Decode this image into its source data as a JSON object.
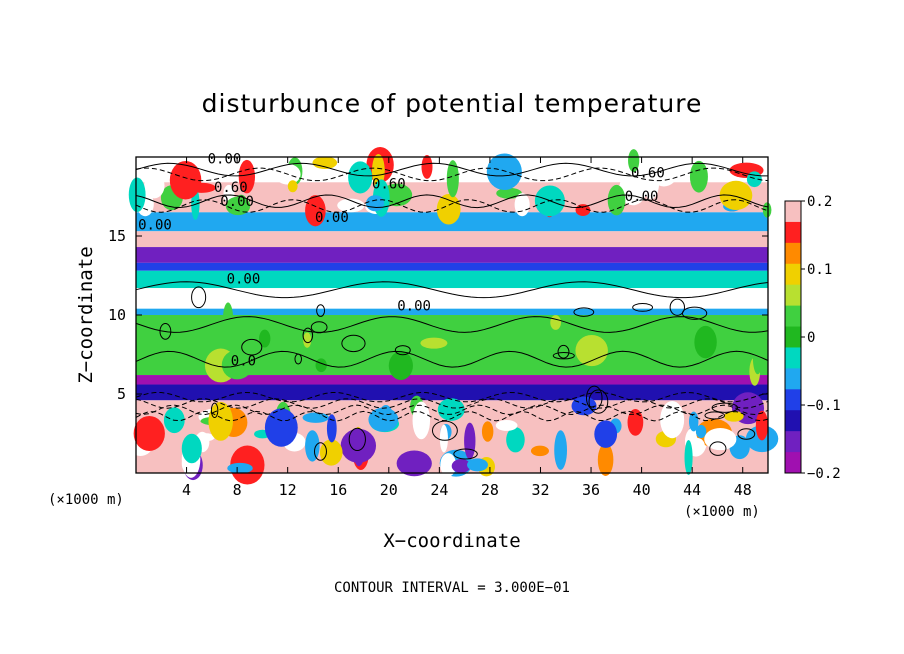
{
  "chart_data": {
    "type": "heatmap",
    "title": "disturbunce of potential temperature",
    "xlabel": "X−coordinate",
    "ylabel": "Z−coordinate",
    "x_unit_left": "(×1000 m)",
    "x_unit_right": "(×1000 m)",
    "xlim": [
      0,
      50
    ],
    "ylim": [
      0,
      20
    ],
    "x_ticks": [
      4,
      8,
      12,
      16,
      20,
      24,
      28,
      32,
      36,
      40,
      44,
      48
    ],
    "y_ticks": [
      5,
      10,
      15
    ],
    "colorbar": {
      "ticks": [
        "0.2",
        "0.1",
        "0",
        "−0.1",
        "−0.2"
      ],
      "range": [
        -0.2,
        0.2
      ],
      "colors": [
        "#f7c0c0",
        "#ff2020",
        "#ff8a00",
        "#f0d000",
        "#b8e030",
        "#40d040",
        "#20b820",
        "#00d8c0",
        "#20a8f0",
        "#2040e8",
        "#2010b0",
        "#7020c0",
        "#a010b0"
      ]
    },
    "bands": [
      {
        "z": [
          18.4,
          20
        ],
        "value": 0.0
      },
      {
        "z": [
          16.5,
          18.4
        ],
        "value": 0.25
      },
      {
        "z": [
          15.3,
          16.5
        ],
        "value": -0.06
      },
      {
        "z": [
          14.3,
          15.3
        ],
        "value": 0.3
      },
      {
        "z": [
          13.3,
          14.3
        ],
        "value": -0.15
      },
      {
        "z": [
          12.8,
          13.3
        ],
        "value": -0.09
      },
      {
        "z": [
          11.7,
          12.8
        ],
        "value": -0.03
      },
      {
        "z": [
          10.4,
          11.7
        ],
        "value": 0.0
      },
      {
        "z": [
          10.0,
          10.4
        ],
        "value": -0.05
      },
      {
        "z": [
          6.2,
          10.0
        ],
        "value": 0.02
      },
      {
        "z": [
          5.6,
          6.2
        ],
        "value": -0.2
      },
      {
        "z": [
          4.6,
          5.6
        ],
        "value": -0.12
      },
      {
        "z": [
          0,
          4.6
        ],
        "value": 0.25
      }
    ],
    "contour_labels": [
      {
        "text": "0.00",
        "x": 7.0,
        "z": 19.6
      },
      {
        "text": "0.60",
        "x": 7.5,
        "z": 17.8
      },
      {
        "text": "0.00",
        "x": 8.0,
        "z": 16.9
      },
      {
        "text": "0.00",
        "x": 1.5,
        "z": 15.4
      },
      {
        "text": "0.60",
        "x": 20.0,
        "z": 18.0
      },
      {
        "text": "0.00",
        "x": 15.5,
        "z": 15.9
      },
      {
        "text": "0.60",
        "x": 40.5,
        "z": 18.7
      },
      {
        "text": "0.00",
        "x": 40.0,
        "z": 17.2
      },
      {
        "text": "0.00",
        "x": 8.5,
        "z": 12.0
      },
      {
        "text": "0.00",
        "x": 22.0,
        "z": 10.3
      },
      {
        "text": "0.0",
        "x": 8.5,
        "z": 6.8
      }
    ],
    "footer": "CONTOUR INTERVAL = 3.000E−01"
  }
}
